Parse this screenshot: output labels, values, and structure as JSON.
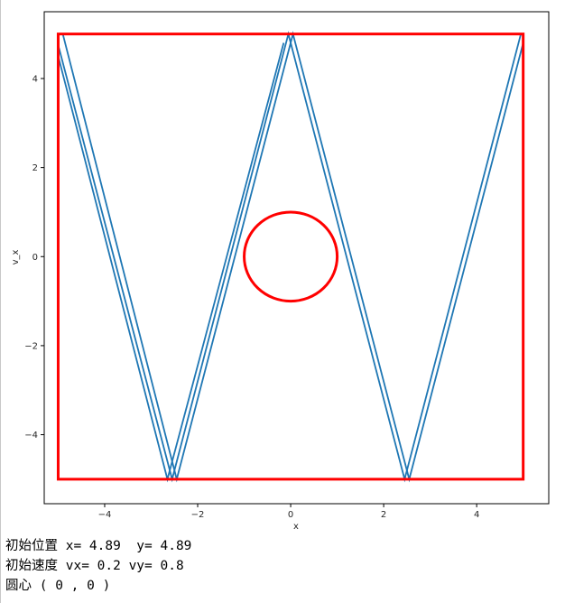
{
  "chart_data": {
    "type": "line",
    "title": "",
    "xlabel": "x",
    "ylabel": "v_x",
    "xlim": [
      -5.3,
      5.55
    ],
    "ylim": [
      -5.55,
      5.5
    ],
    "xticks": [
      -4,
      -2,
      0,
      2,
      4
    ],
    "xtick_labels": [
      "−4",
      "−2",
      "0",
      "2",
      "4"
    ],
    "yticks": [
      -4,
      -2,
      0,
      2,
      4
    ],
    "ytick_labels": [
      "−4",
      "−2",
      "0",
      "2",
      "4"
    ],
    "grid": false,
    "legend": "none",
    "colors": {
      "trajectory": "#1f77b4",
      "boundary": "#ff0000"
    },
    "boundary_square": {
      "xmin": -5,
      "xmax": 5,
      "ymin": -5,
      "ymax": 5
    },
    "circle": {
      "cx": 0,
      "cy": 0,
      "r": 1
    },
    "trajectory": [
      {
        "x": [
          -5,
          -2.55,
          -0.05,
          2.45,
          4.95
        ],
        "y": [
          4.75,
          -5,
          5,
          -5,
          5
        ]
      },
      {
        "x": [
          -4.9,
          -2.45,
          0.05,
          2.55,
          5
        ],
        "y": [
          5,
          -5,
          5,
          -5,
          4.8
        ]
      },
      {
        "x": [
          -5,
          -2.65,
          -0.15
        ],
        "y": [
          4.5,
          -5,
          4.8
        ]
      }
    ]
  },
  "output": {
    "line1": "初始位置 x= 4.89  y= 4.89",
    "line2": "初始速度 vx= 0.2 vy= 0.8",
    "line3": "圆心 ( 0 , 0 )"
  }
}
